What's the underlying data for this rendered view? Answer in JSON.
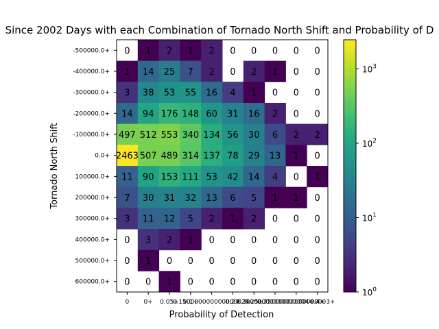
{
  "chart_data": {
    "type": "heatmap",
    "title": "Since 2002 Days with each Combination of Tornado North Shift and Probability of D",
    "xlabel": "Probability of Detection",
    "ylabel": "Tornado North Shift",
    "color_scale": "log",
    "colormap": "viridis",
    "colorbar": {
      "range": [
        1,
        2463
      ],
      "ticks": [
        {
          "value": 1,
          "base": "10",
          "exp": "0"
        },
        {
          "value": 10,
          "base": "10",
          "exp": "1"
        },
        {
          "value": 100,
          "base": "10",
          "exp": "2"
        },
        {
          "value": 1000,
          "base": "10",
          "exp": "3"
        }
      ]
    },
    "x_ticks": [
      "0",
      "0+",
      "0.05+",
      "0.1+",
      "0.15000000000000002+",
      "0.2+",
      "0.25+",
      "0.30000000000000004+",
      "0.35000000000000003+",
      "0.4+"
    ],
    "y_ticks": [
      "-500000.0+",
      "-400000.0+",
      "-300000.0+",
      "-200000.0+",
      "-100000.0+",
      "0.0+",
      "100000.0+",
      "200000.0+",
      "300000.0+",
      "400000.0+",
      "500000.0+",
      "600000.0+"
    ],
    "values": [
      [
        0,
        1,
        2,
        1,
        2,
        0,
        0,
        0,
        0,
        0
      ],
      [
        1,
        14,
        25,
        7,
        2,
        0,
        2,
        1,
        0,
        0
      ],
      [
        3,
        38,
        53,
        55,
        16,
        4,
        1,
        0,
        0,
        0
      ],
      [
        14,
        94,
        176,
        148,
        60,
        31,
        16,
        2,
        0,
        0
      ],
      [
        497,
        512,
        553,
        340,
        134,
        56,
        30,
        6,
        2,
        2
      ],
      [
        2463,
        507,
        489,
        314,
        137,
        78,
        29,
        13,
        1,
        0
      ],
      [
        11,
        90,
        153,
        111,
        53,
        42,
        14,
        4,
        0,
        1
      ],
      [
        7,
        30,
        31,
        32,
        13,
        6,
        5,
        1,
        1,
        0
      ],
      [
        3,
        11,
        12,
        5,
        2,
        1,
        2,
        0,
        0,
        0
      ],
      [
        0,
        3,
        2,
        1,
        0,
        0,
        0,
        0,
        0,
        0
      ],
      [
        0,
        1,
        0,
        0,
        0,
        0,
        0,
        0,
        0,
        0
      ],
      [
        0,
        0,
        1,
        0,
        0,
        0,
        0,
        0,
        0,
        0
      ]
    ]
  }
}
